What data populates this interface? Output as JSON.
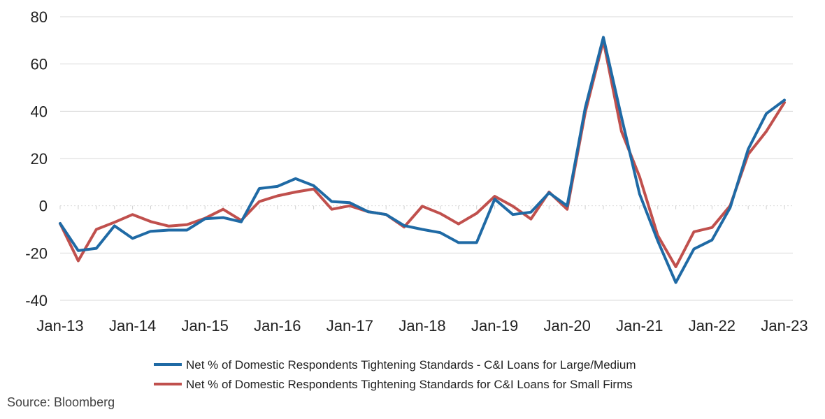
{
  "chart_data": {
    "type": "line",
    "x": [
      "Jan-13",
      "Apr-13",
      "Jul-13",
      "Oct-13",
      "Jan-14",
      "Apr-14",
      "Jul-14",
      "Oct-14",
      "Jan-15",
      "Apr-15",
      "Jul-15",
      "Oct-15",
      "Jan-16",
      "Apr-16",
      "Jul-16",
      "Oct-16",
      "Jan-17",
      "Apr-17",
      "Jul-17",
      "Oct-17",
      "Jan-18",
      "Apr-18",
      "Jul-18",
      "Oct-18",
      "Jan-19",
      "Apr-19",
      "Jul-19",
      "Oct-19",
      "Jan-20",
      "Apr-20",
      "Jul-20",
      "Oct-20",
      "Jan-21",
      "Apr-21",
      "Jul-21",
      "Oct-21",
      "Jan-22",
      "Apr-22",
      "Jul-22",
      "Oct-22",
      "Jan-23"
    ],
    "x_tick_labels": [
      "Jan-13",
      "Jan-14",
      "Jan-15",
      "Jan-16",
      "Jan-17",
      "Jan-18",
      "Jan-19",
      "Jan-20",
      "Jan-21",
      "Jan-22",
      "Jan-23"
    ],
    "y_ticks": [
      80,
      60,
      40,
      20,
      0,
      -20,
      -40
    ],
    "ylim": [
      -40,
      80
    ],
    "grid": "horizontal",
    "legend_position": "bottom",
    "series": [
      {
        "name": "Net % of Domestic Respondents Tightening Standards - C&I Loans for Large/Medium",
        "color": "#1f6aa5",
        "values": [
          -7.5,
          -19,
          -18,
          -8.5,
          -13.8,
          -10.8,
          -10.3,
          -10.3,
          -5.5,
          -5,
          -6.8,
          7.3,
          8.2,
          11.5,
          8.5,
          1.8,
          1.3,
          -2.5,
          -3.7,
          -8.4,
          -10,
          -11.4,
          -15.6,
          -15.6,
          2.8,
          -3.7,
          -2.7,
          5.5,
          0,
          41.5,
          71.3,
          37.5,
          5,
          -14.8,
          -32.5,
          -18.3,
          -14.5,
          -0.8,
          24,
          39,
          44.7
        ]
      },
      {
        "name": "Net % of Domestic Respondents Tightening Standards for C&I Loans for Small Firms",
        "color": "#c0504d",
        "values": [
          -7.5,
          -23.3,
          -10,
          -7,
          -3.7,
          -6.7,
          -8.6,
          -8,
          -5.3,
          -1.5,
          -6.2,
          1.8,
          4.2,
          5.8,
          7.1,
          -1.5,
          0,
          -2.5,
          -3.7,
          -9,
          -0.2,
          -3.3,
          -7.7,
          -3.2,
          4,
          -0.2,
          -5.6,
          5.8,
          -1.5,
          39.5,
          69.8,
          31.5,
          12.3,
          -12.5,
          -25.8,
          -11,
          -9.2,
          0,
          21.8,
          31.5,
          43.7
        ]
      }
    ]
  },
  "source_text": "Source: Bloomberg"
}
